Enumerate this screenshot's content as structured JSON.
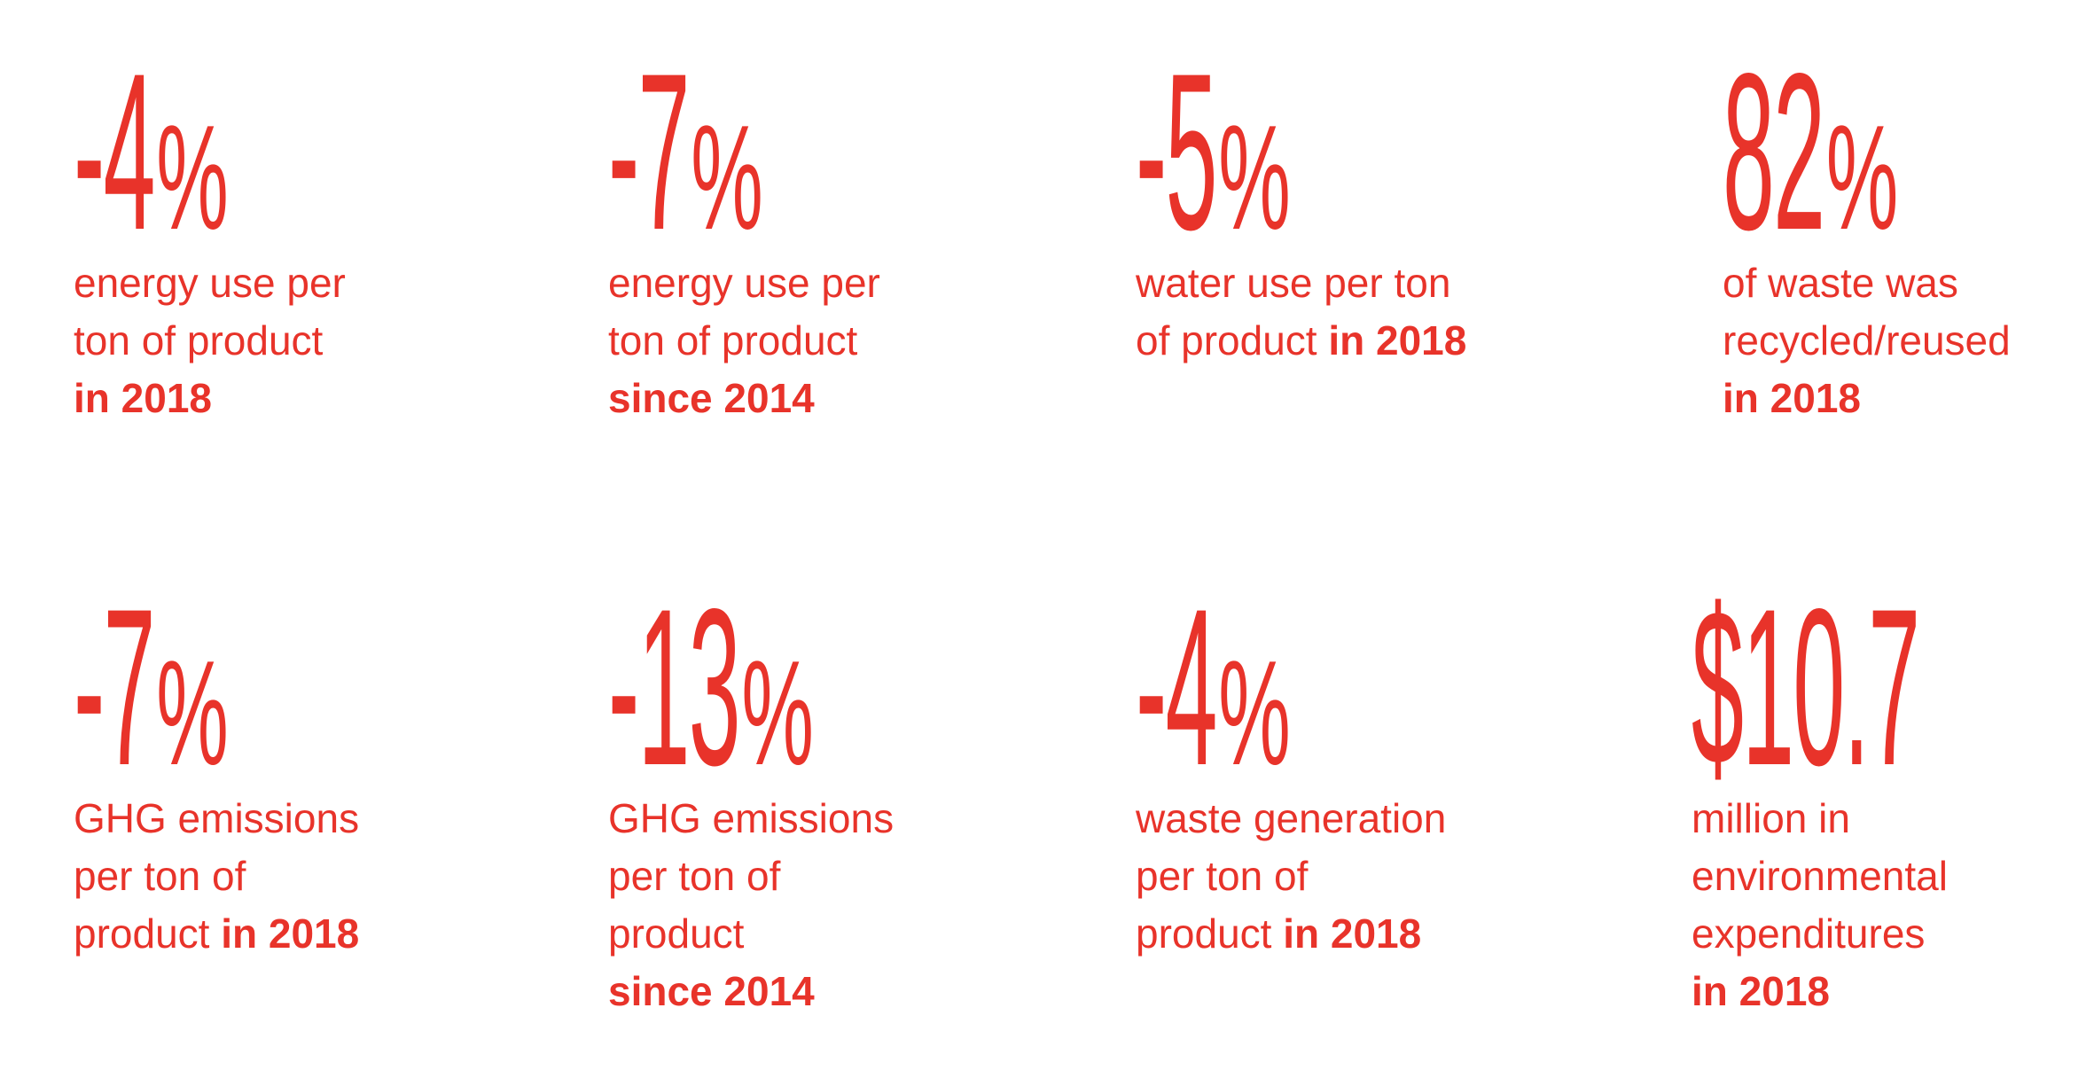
{
  "accent_color": "#e8332a",
  "stats": [
    {
      "value": "-4",
      "unit": "%",
      "lines": [
        "energy use per",
        "ton of product"
      ],
      "pre_bold": "",
      "bold": "in 2018"
    },
    {
      "value": "-7",
      "unit": "%",
      "lines": [
        "energy use per",
        "ton of product"
      ],
      "pre_bold": "",
      "bold": "since 2014"
    },
    {
      "value": "-5",
      "unit": "%",
      "lines": [
        "water use per ton"
      ],
      "pre_bold": "of product ",
      "bold": "in 2018"
    },
    {
      "value": "82",
      "unit": "%",
      "lines": [
        "of waste was",
        "recycled/reused"
      ],
      "pre_bold": "",
      "bold": "in 2018"
    },
    {
      "value": "-7",
      "unit": "%",
      "lines": [
        "GHG emissions",
        "per ton of"
      ],
      "pre_bold": "product ",
      "bold": "in 2018"
    },
    {
      "value": "-13",
      "unit": "%",
      "lines": [
        "GHG emissions",
        "per ton of",
        "product"
      ],
      "pre_bold": "",
      "bold": "since 2014"
    },
    {
      "value": "-4",
      "unit": "%",
      "lines": [
        "waste generation",
        "per ton of"
      ],
      "pre_bold": "product ",
      "bold": "in 2018"
    },
    {
      "value": "$10.7",
      "unit": "",
      "lines": [
        "million in",
        "environmental",
        "expenditures"
      ],
      "pre_bold": "",
      "bold": "in 2018"
    }
  ]
}
